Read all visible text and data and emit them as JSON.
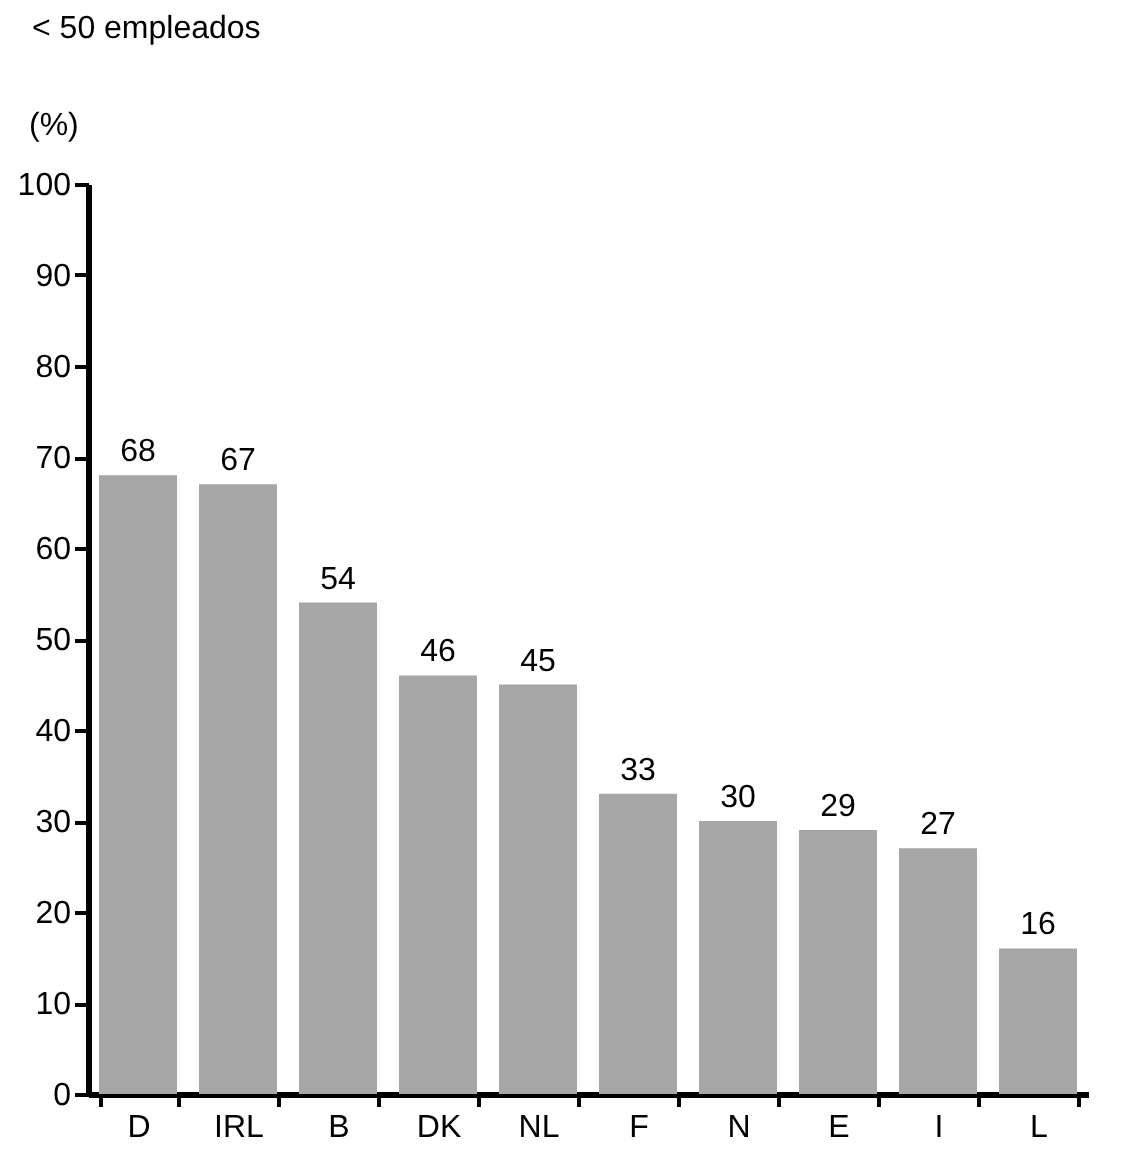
{
  "chart_data": {
    "type": "bar",
    "title": "< 50 empleados",
    "ylabel": "(%)",
    "categories": [
      "D",
      "IRL",
      "B",
      "DK",
      "NL",
      "F",
      "N",
      "E",
      "I",
      "L"
    ],
    "values": [
      68,
      67,
      54,
      46,
      45,
      33,
      30,
      29,
      27,
      16
    ],
    "color": "#a6a6a6",
    "ylim": [
      0,
      100
    ],
    "yticks": [
      0,
      10,
      20,
      30,
      40,
      50,
      60,
      70,
      80,
      90,
      100
    ],
    "grid": false,
    "data_labels": true
  }
}
